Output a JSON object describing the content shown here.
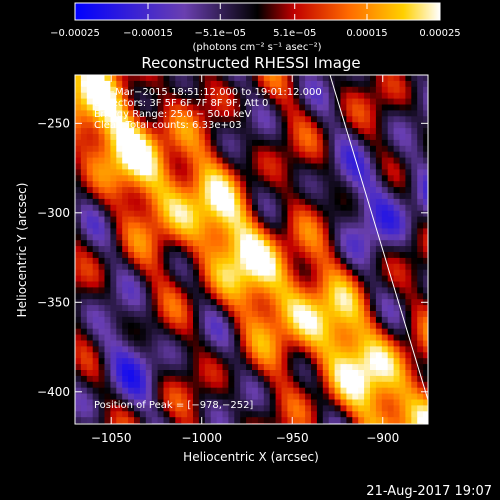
{
  "chart_data": {
    "type": "heatmap",
    "title": "Reconstructed RHESSI Image",
    "xlabel": "Heliocentric X (arcsec)",
    "ylabel": "Heliocentric Y (arcsec)",
    "xlim": [
      -1070,
      -875
    ],
    "ylim": [
      -418,
      -223
    ],
    "x_ticks": [
      -1050,
      -1000,
      -950,
      -900
    ],
    "x_tick_labels": [
      "−1050",
      "−1000",
      "−950",
      "−900"
    ],
    "y_ticks": [
      -250,
      -300,
      -350,
      -400
    ],
    "y_tick_labels": [
      "−250",
      "−300",
      "−350",
      "−400"
    ],
    "colorbar": {
      "range": [
        -0.00025,
        0.00025
      ],
      "ticks": [
        -0.00025,
        -0.00015,
        -5.1e-05,
        5.1e-05,
        0.00015,
        0.00025
      ],
      "tick_labels": [
        "−0.00025",
        "−0.00015",
        "−5.1e−05",
        "5.1e−05",
        "0.00015",
        "0.00025"
      ],
      "unit_label": "(photons cm⁻² s⁻¹ asec⁻²)",
      "colors": [
        "#0000ff",
        "#6a3fb0",
        "#000000",
        "#c00000",
        "#ff6a00",
        "#ffd000",
        "#ffffff"
      ]
    },
    "annotations": [
      "17−Mar−2015 18:51:12.000 to 19:01:12.000",
      "Detectors: 3F 5F 6F 7F 8F 9F, Att 0",
      "Energy Range: 25.0 − 50.0 keV",
      "Clean     Total counts: 6.33e+03"
    ],
    "peak_label": "Position of Peak = [−978,−252]",
    "limb_color": "#ffffff",
    "grid": false
  },
  "footer": {
    "timestamp": "21-Aug-2017 19:07"
  }
}
